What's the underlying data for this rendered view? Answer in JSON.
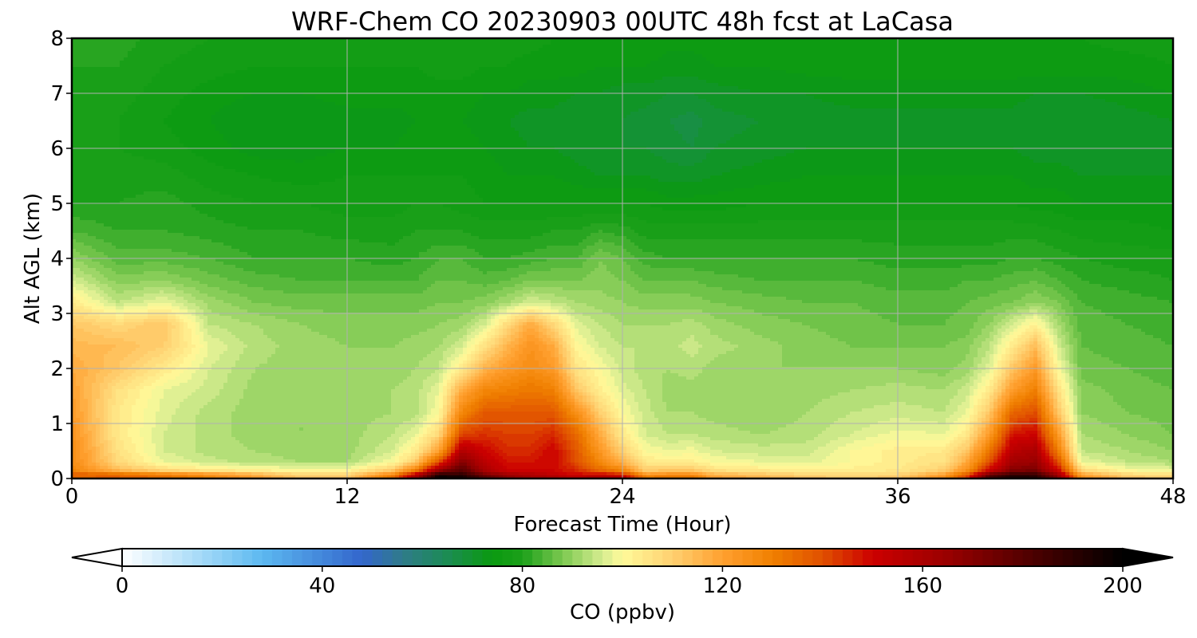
{
  "chart_data": {
    "type": "heatmap",
    "plot_style": "filled-contour",
    "title": "WRF-Chem CO  20230903 00UTC 48h fcst at LaCasa",
    "xlabel": "Forecast Time (Hour)",
    "ylabel": "Alt AGL (km)",
    "xlim": [
      0,
      48
    ],
    "ylim": [
      0,
      8
    ],
    "x_ticks": [
      0,
      12,
      24,
      36,
      48
    ],
    "y_ticks": [
      0,
      1,
      2,
      3,
      4,
      5,
      6,
      7,
      8
    ],
    "grid": true,
    "x": [
      0,
      2,
      4,
      6,
      8,
      10,
      12,
      14,
      15,
      16,
      17,
      18,
      19,
      20,
      21,
      22,
      23,
      24,
      25,
      26,
      27,
      28,
      30,
      32,
      34,
      36,
      38,
      39,
      40,
      41,
      42,
      43,
      44,
      46,
      48
    ],
    "y": [
      0,
      0.05,
      0.15,
      0.3,
      0.5,
      0.8,
      1.2,
      1.6,
      2.0,
      2.4,
      2.8,
      3.2,
      3.6,
      4.0,
      4.5,
      5.0,
      5.5,
      6.0,
      6.5,
      7.0,
      7.5,
      8.0
    ],
    "z": [
      [
        130,
        131,
        130,
        126,
        118,
        112,
        112,
        135,
        165,
        200,
        200,
        185,
        170,
        165,
        165,
        160,
        162,
        160,
        135,
        135,
        135,
        120,
        116,
        112,
        110,
        112,
        125,
        145,
        185,
        200,
        195,
        170,
        125,
        112,
        110
      ],
      [
        140,
        140,
        135,
        128,
        120,
        110,
        110,
        130,
        160,
        195,
        190,
        175,
        165,
        160,
        155,
        150,
        155,
        150,
        125,
        128,
        128,
        118,
        114,
        110,
        108,
        110,
        122,
        140,
        180,
        190,
        188,
        165,
        122,
        110,
        108
      ],
      [
        128,
        115,
        108,
        104,
        102,
        100,
        100,
        112,
        130,
        165,
        180,
        160,
        150,
        150,
        150,
        145,
        135,
        128,
        110,
        112,
        112,
        106,
        104,
        102,
        103,
        104,
        110,
        125,
        150,
        170,
        172,
        150,
        108,
        100,
        98
      ],
      [
        126,
        108,
        98,
        95,
        93,
        92,
        92,
        100,
        112,
        140,
        170,
        155,
        148,
        148,
        150,
        140,
        128,
        116,
        104,
        103,
        103,
        100,
        98,
        97,
        100,
        103,
        106,
        118,
        140,
        162,
        165,
        140,
        98,
        94,
        92
      ],
      [
        126,
        106,
        96,
        93,
        92,
        91,
        91,
        96,
        104,
        120,
        158,
        150,
        145,
        145,
        150,
        138,
        123,
        110,
        100,
        98,
        99,
        96,
        95,
        95,
        100,
        103,
        104,
        112,
        132,
        156,
        160,
        130,
        94,
        92,
        90
      ],
      [
        124,
        104,
        96,
        93,
        91,
        90,
        91,
        94,
        98,
        108,
        142,
        144,
        142,
        142,
        145,
        135,
        118,
        104,
        96,
        94,
        94,
        93,
        92,
        93,
        96,
        99,
        98,
        104,
        122,
        148,
        150,
        122,
        92,
        90,
        88
      ],
      [
        122,
        104,
        97,
        93,
        91,
        90,
        91,
        92,
        93,
        100,
        128,
        138,
        138,
        138,
        138,
        125,
        110,
        100,
        95,
        92,
        92,
        91,
        90,
        92,
        94,
        95,
        94,
        98,
        112,
        135,
        140,
        112,
        90,
        88,
        87
      ],
      [
        120,
        106,
        98,
        95,
        91,
        90,
        90,
        92,
        93,
        98,
        118,
        128,
        130,
        132,
        130,
        112,
        103,
        97,
        94,
        91,
        91,
        91,
        90,
        91,
        92,
        93,
        92,
        95,
        104,
        122,
        130,
        106,
        89,
        87,
        86
      ],
      [
        118,
        112,
        104,
        96,
        92,
        91,
        90,
        91,
        92,
        94,
        104,
        116,
        122,
        126,
        122,
        105,
        100,
        95,
        93,
        92,
        93,
        91,
        90,
        90,
        90,
        90,
        89,
        91,
        97,
        112,
        122,
        100,
        87,
        86,
        85
      ],
      [
        115,
        114,
        110,
        98,
        93,
        91,
        90,
        90,
        91,
        92,
        96,
        106,
        116,
        124,
        118,
        101,
        96,
        94,
        94,
        93,
        95,
        93,
        91,
        89,
        88,
        88,
        88,
        89,
        94,
        104,
        114,
        96,
        86,
        85,
        84
      ],
      [
        112,
        108,
        112,
        94,
        92,
        90,
        89,
        89,
        89,
        90,
        91,
        96,
        108,
        118,
        108,
        97,
        94,
        92,
        92,
        92,
        93,
        91,
        89,
        88,
        87,
        86,
        86,
        87,
        90,
        96,
        102,
        92,
        85,
        84,
        83
      ],
      [
        104,
        94,
        98,
        91,
        88,
        87,
        87,
        87,
        87,
        88,
        88,
        89,
        92,
        96,
        94,
        92,
        91,
        90,
        89,
        89,
        89,
        88,
        87,
        86,
        86,
        85,
        85,
        86,
        87,
        88,
        90,
        88,
        84,
        83,
        82
      ],
      [
        96,
        89,
        90,
        87,
        85,
        84,
        84,
        84,
        84,
        86,
        86,
        85,
        86,
        88,
        88,
        88,
        89,
        88,
        86,
        86,
        86,
        85,
        84,
        84,
        84,
        83,
        83,
        84,
        84,
        85,
        86,
        84,
        82,
        81,
        80
      ],
      [
        90,
        85,
        85,
        84,
        82,
        82,
        82,
        81,
        82,
        84,
        84,
        82,
        82,
        83,
        84,
        84,
        88,
        86,
        83,
        82,
        82,
        82,
        82,
        82,
        82,
        81,
        81,
        81,
        81,
        82,
        82,
        81,
        80,
        79,
        79
      ],
      [
        84,
        82,
        82,
        81,
        80,
        80,
        79,
        79,
        80,
        80,
        80,
        79,
        79,
        79,
        80,
        80,
        82,
        81,
        79,
        79,
        79,
        79,
        79,
        79,
        79,
        79,
        79,
        79,
        79,
        79,
        79,
        78,
        77,
        77,
        76
      ],
      [
        80,
        80,
        81,
        79,
        78,
        78,
        77,
        77,
        78,
        78,
        77,
        76,
        76,
        76,
        76,
        76,
        76,
        76,
        76,
        75,
        75,
        75,
        76,
        76,
        76,
        76,
        76,
        76,
        76,
        76,
        75,
        75,
        74,
        74,
        74
      ],
      [
        79,
        79,
        79,
        77,
        76,
        75,
        76,
        76,
        76,
        76,
        76,
        75,
        74,
        74,
        74,
        73,
        72,
        72,
        72,
        71,
        71,
        72,
        73,
        74,
        74,
        74,
        74,
        74,
        74,
        74,
        73,
        73,
        72,
        72,
        72
      ],
      [
        78,
        78,
        77,
        75,
        73,
        73,
        74,
        74,
        75,
        75,
        75,
        74,
        73,
        72,
        72,
        71,
        70,
        70,
        70,
        69,
        68,
        70,
        71,
        72,
        72,
        72,
        72,
        72,
        72,
        72,
        71,
        71,
        70,
        71,
        71
      ],
      [
        78,
        78,
        76,
        74,
        72,
        72,
        73,
        73,
        74,
        74,
        74,
        73,
        72,
        71,
        71,
        70,
        70,
        70,
        69,
        68,
        67,
        69,
        70,
        71,
        71,
        71,
        71,
        71,
        71,
        71,
        70,
        70,
        70,
        71,
        72
      ],
      [
        79,
        79,
        77,
        75,
        74,
        74,
        75,
        75,
        75,
        75,
        75,
        74,
        74,
        73,
        73,
        72,
        72,
        71,
        71,
        70,
        70,
        71,
        72,
        72,
        73,
        73,
        73,
        73,
        73,
        73,
        72,
        72,
        72,
        73,
        74
      ],
      [
        80,
        80,
        78,
        77,
        76,
        76,
        76,
        76,
        76,
        77,
        77,
        76,
        76,
        75,
        75,
        75,
        74,
        74,
        74,
        73,
        73,
        74,
        74,
        75,
        75,
        75,
        75,
        75,
        75,
        75,
        75,
        75,
        75,
        75,
        76
      ],
      [
        81,
        81,
        79,
        78,
        77,
        77,
        77,
        77,
        77,
        78,
        78,
        77,
        77,
        77,
        76,
        76,
        76,
        76,
        76,
        75,
        75,
        75,
        76,
        76,
        76,
        76,
        76,
        76,
        76,
        76,
        76,
        76,
        76,
        77,
        77
      ]
    ],
    "colorbar": {
      "label": "CO  (ppbv)",
      "orientation": "horizontal",
      "range": [
        0,
        200
      ],
      "levels": 100,
      "ticks": [
        0,
        40,
        80,
        120,
        160,
        200
      ],
      "extend": "both",
      "colormap_stops": [
        {
          "value": 0,
          "color": "#ffffff"
        },
        {
          "value": 20,
          "color": "#8ccff5"
        },
        {
          "value": 28,
          "color": "#5cb8f0"
        },
        {
          "value": 48,
          "color": "#3366cc"
        },
        {
          "value": 56,
          "color": "#2f7b8a"
        },
        {
          "value": 64,
          "color": "#1e8a5a"
        },
        {
          "value": 74,
          "color": "#0a9a10"
        },
        {
          "value": 80,
          "color": "#1ca01a"
        },
        {
          "value": 88,
          "color": "#7cc850"
        },
        {
          "value": 96,
          "color": "#d6ec90"
        },
        {
          "value": 100,
          "color": "#fffa9a"
        },
        {
          "value": 110,
          "color": "#ffd070"
        },
        {
          "value": 120,
          "color": "#ffa030"
        },
        {
          "value": 130,
          "color": "#f08000"
        },
        {
          "value": 140,
          "color": "#e05000"
        },
        {
          "value": 150,
          "color": "#cc0000"
        },
        {
          "value": 165,
          "color": "#990000"
        },
        {
          "value": 180,
          "color": "#550000"
        },
        {
          "value": 200,
          "color": "#000000"
        }
      ]
    }
  }
}
